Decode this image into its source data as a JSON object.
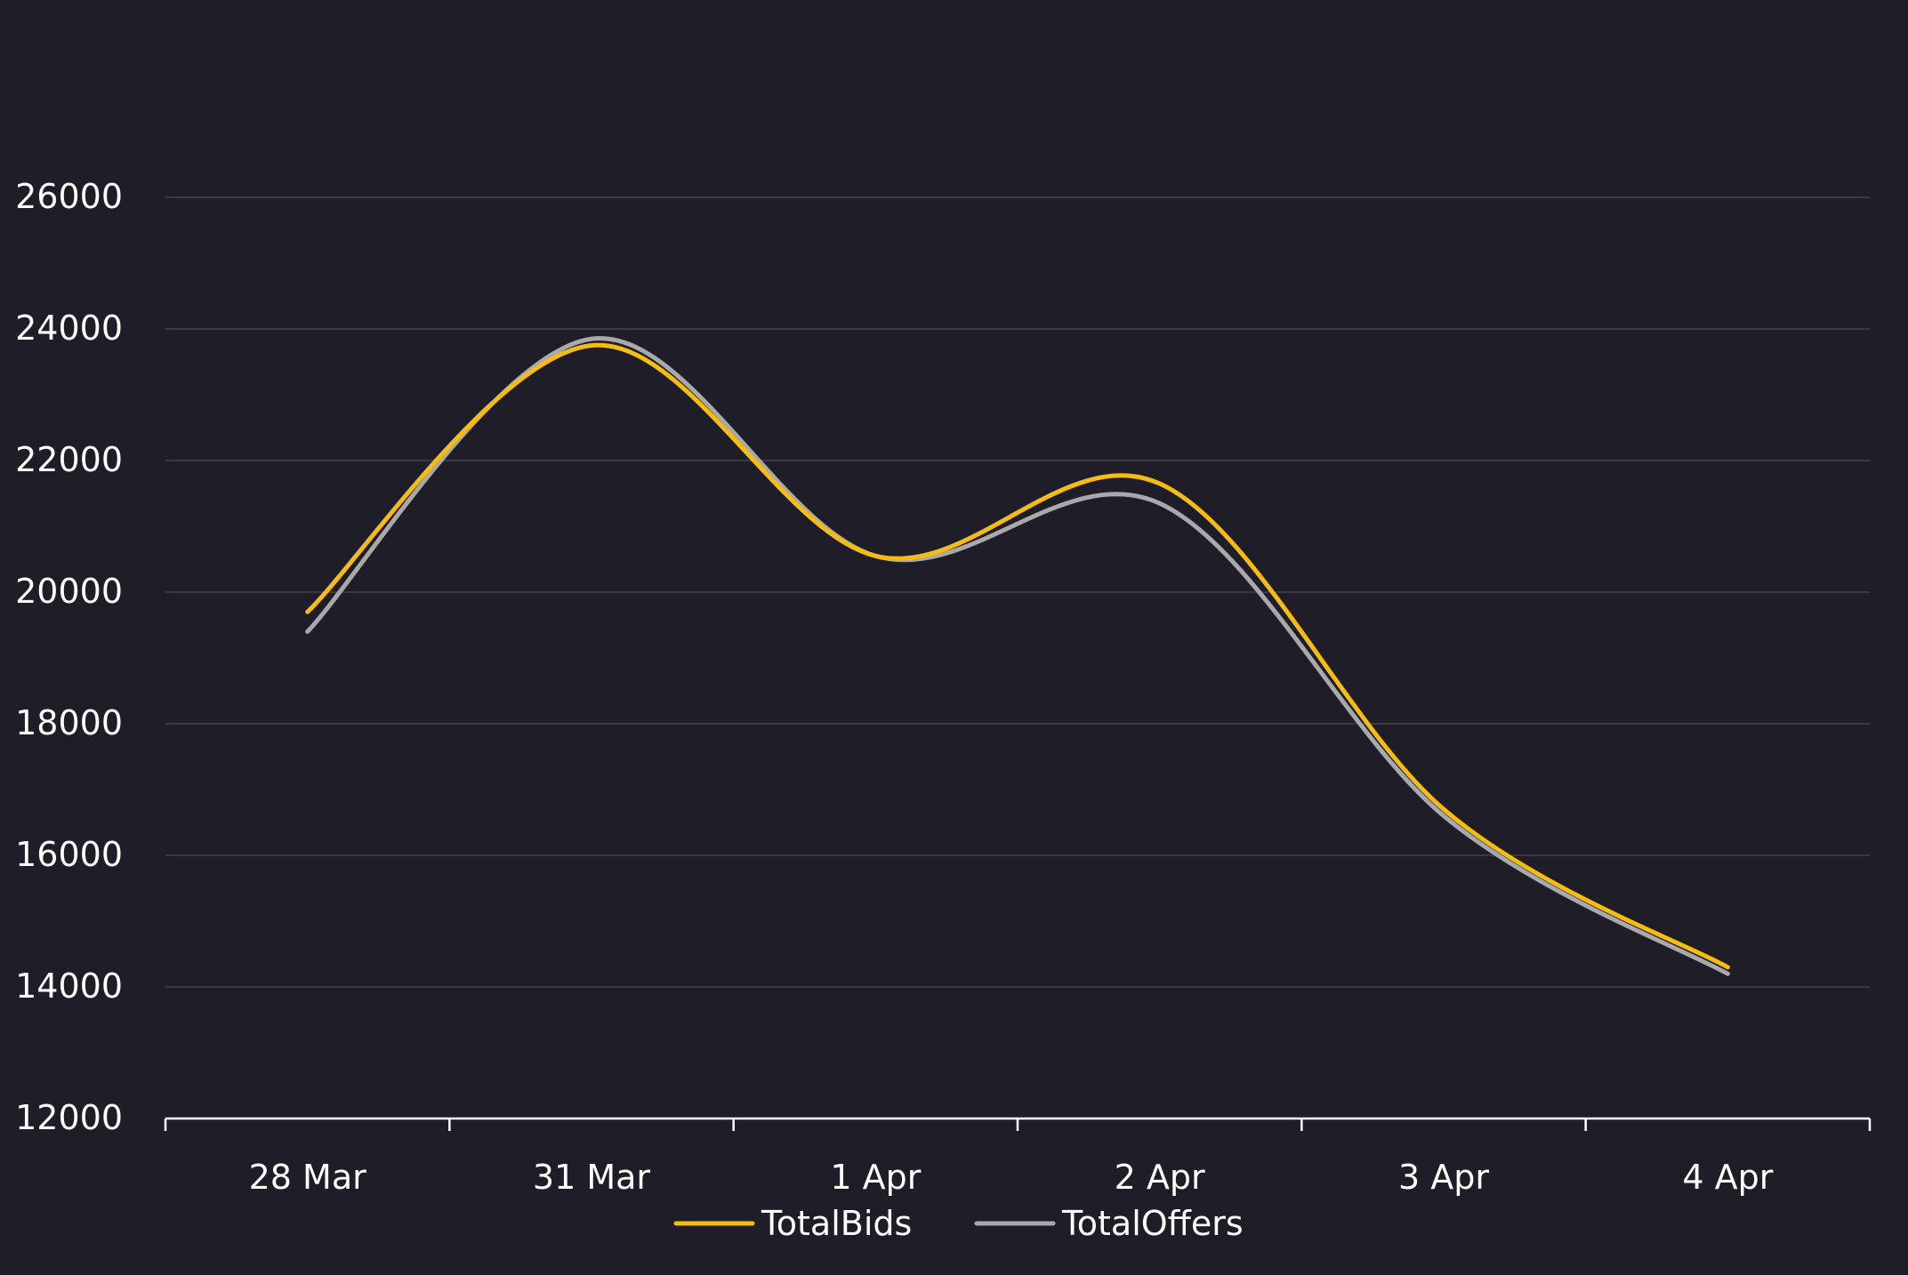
{
  "colors": {
    "background": "#1f1d28",
    "gridline": "#3a3843",
    "axis": "#ffffff",
    "text": "#ffffff",
    "series_bids": "#f5bd12",
    "series_offers": "#a9a9ab"
  },
  "chart_data": {
    "type": "line",
    "title": "",
    "xlabel": "",
    "ylabel": "",
    "categories": [
      "28 Mar",
      "31 Mar",
      "1 Apr",
      "2 Apr",
      "3 Apr",
      "4 Apr"
    ],
    "yticks": [
      12000,
      14000,
      16000,
      18000,
      20000,
      22000,
      24000,
      26000
    ],
    "ylim": [
      12000,
      27000
    ],
    "smooth": true,
    "grid": true,
    "legend_position": "bottom-center",
    "series": [
      {
        "name": "TotalBids",
        "color": "#f5bd12",
        "points": [
          {
            "x": "28 Mar",
            "y": 19700
          },
          {
            "x": "31 Mar",
            "y": 23750
          },
          {
            "x": "1 Apr",
            "y": 20550
          },
          {
            "x": "2 Apr",
            "y": 21650
          },
          {
            "x": "3 Apr",
            "y": 16700
          },
          {
            "x": "4 Apr",
            "y": 14300
          }
        ]
      },
      {
        "name": "TotalOffers",
        "color": "#a9a9ab",
        "points": [
          {
            "x": "28 Mar",
            "y": 19400
          },
          {
            "x": "31 Mar",
            "y": 23850
          },
          {
            "x": "1 Apr",
            "y": 20550
          },
          {
            "x": "2 Apr",
            "y": 21350
          },
          {
            "x": "3 Apr",
            "y": 16600
          },
          {
            "x": "4 Apr",
            "y": 14200
          }
        ]
      }
    ]
  }
}
